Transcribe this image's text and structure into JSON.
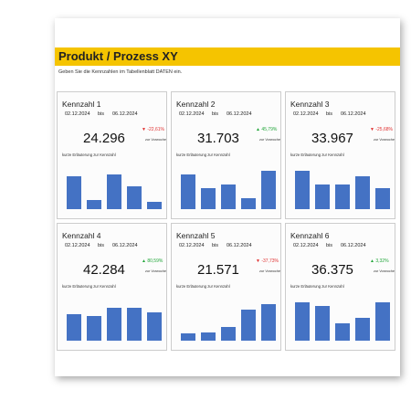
{
  "header": {
    "title": "Produkt / Prozess XY",
    "subtitle": "Geben Sie die Kennzahlen im Tabellenblatt DATEN ein."
  },
  "cards": [
    {
      "name": "Kennzahl 1",
      "from": "02.12.2024",
      "bis": "bis",
      "to": "06.12.2024",
      "value": "24.296",
      "change": "▼ -22,61%",
      "change_color": "#e03030",
      "compare": "zur Vorwoche",
      "note": "kurze Erläuterung zur Kennzahl",
      "bars": [
        85,
        25,
        90,
        60,
        20
      ],
      "ylim": [
        0,
        100
      ],
      "bar_color": "#4472c4"
    },
    {
      "name": "Kennzahl 2",
      "from": "02.12.2024",
      "bis": "bis",
      "to": "06.12.2024",
      "value": "31.703",
      "change": "▲ 45,79%",
      "change_color": "#22a63a",
      "compare": "zur Vorwoche",
      "note": "kurze Erläuterung zur Kennzahl",
      "bars": [
        90,
        55,
        65,
        28,
        100
      ],
      "ylim": [
        0,
        100
      ],
      "bar_color": "#4472c4"
    },
    {
      "name": "Kennzahl 3",
      "from": "02.12.2024",
      "bis": "bis",
      "to": "06.12.2024",
      "value": "33.967",
      "change": "▼ -25,68%",
      "change_color": "#e03030",
      "compare": "zur Vorwoche",
      "note": "kurze Erläuterung zur Kennzahl",
      "bars": [
        100,
        65,
        65,
        85,
        55
      ],
      "ylim": [
        0,
        100
      ],
      "bar_color": "#4472c4"
    },
    {
      "name": "Kennzahl 4",
      "from": "02.12.2024",
      "bis": "bis",
      "to": "06.12.2024",
      "value": "42.284",
      "change": "▲ 80,59%",
      "change_color": "#22a63a",
      "compare": "zur Vorwoche",
      "note": "kurze Erläuterung zur Kennzahl",
      "bars": [
        70,
        65,
        85,
        85,
        75
      ],
      "ylim": [
        0,
        100
      ],
      "bar_color": "#4472c4"
    },
    {
      "name": "Kennzahl 5",
      "from": "02.12.2024",
      "bis": "bis",
      "to": "06.12.2024",
      "value": "21.571",
      "change": "▼ -37,73%",
      "change_color": "#e03030",
      "compare": "zur Vorwoche",
      "note": "kurze Erläuterung zur Kennzahl",
      "bars": [
        18,
        22,
        35,
        80,
        95
      ],
      "ylim": [
        0,
        100
      ],
      "bar_color": "#4472c4"
    },
    {
      "name": "Kennzahl 6",
      "from": "02.12.2024",
      "bis": "bis",
      "to": "06.12.2024",
      "value": "36.375",
      "change": "▲ 3,32%",
      "change_color": "#22a63a",
      "compare": "zur Vorwoche",
      "note": "kurze Erläuterung zur Kennzahl",
      "bars": [
        100,
        90,
        45,
        60,
        100
      ],
      "ylim": [
        0,
        100
      ],
      "bar_color": "#4472c4"
    }
  ]
}
